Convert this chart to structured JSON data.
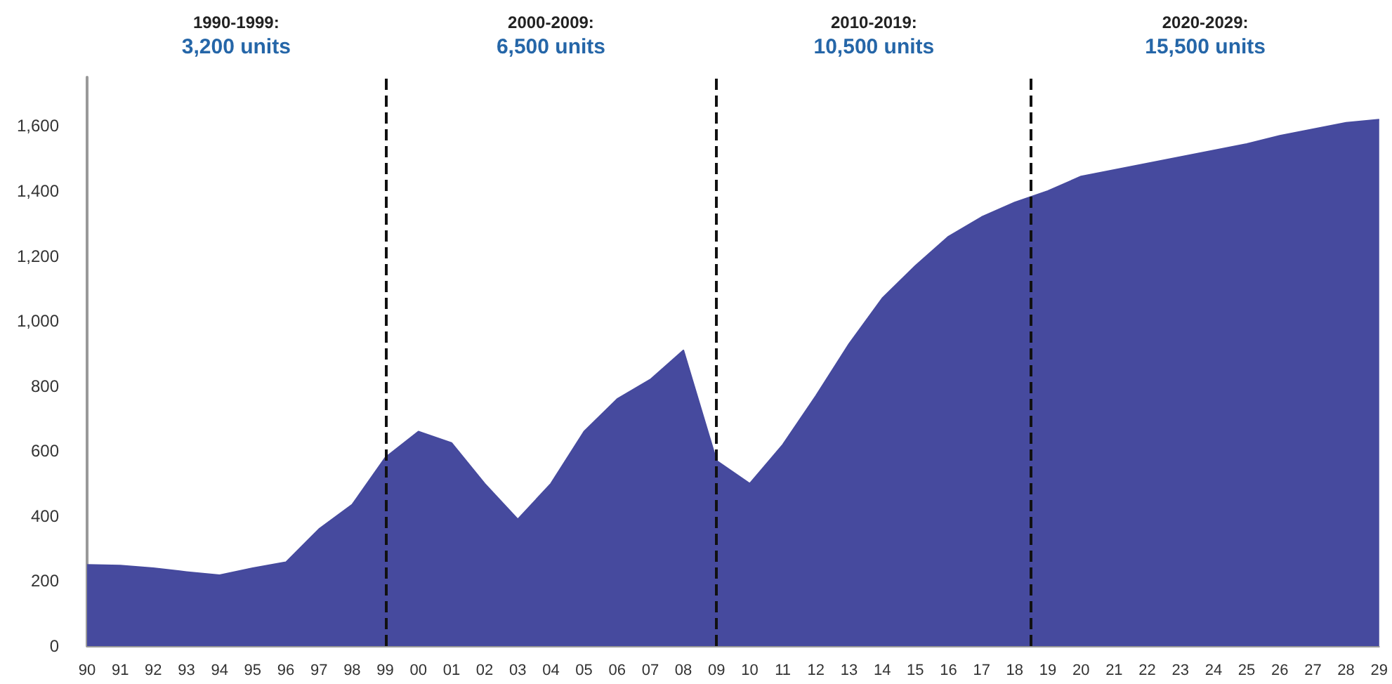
{
  "chart_data": {
    "type": "area",
    "x": [
      1990,
      1991,
      1992,
      1993,
      1994,
      1995,
      1996,
      1997,
      1998,
      1999,
      2000,
      2001,
      2002,
      2003,
      2004,
      2005,
      2006,
      2007,
      2008,
      2009,
      2010,
      2011,
      2012,
      2013,
      2014,
      2015,
      2016,
      2017,
      2018,
      2019,
      2020,
      2021,
      2022,
      2023,
      2024,
      2025,
      2026,
      2027,
      2028,
      2029
    ],
    "series": [
      {
        "color": "#464a9e",
        "values": [
          250,
          248,
          240,
          228,
          218,
          240,
          258,
          360,
          435,
          580,
          660,
          625,
          500,
          390,
          500,
          660,
          760,
          820,
          910,
          570,
          500,
          620,
          770,
          930,
          1070,
          1170,
          1260,
          1320,
          1365,
          1400,
          1445,
          1465,
          1485,
          1505,
          1525,
          1545,
          1570,
          1590,
          1610,
          1620
        ]
      }
    ],
    "xlim": [
      1990,
      2029
    ],
    "xticks": [
      {
        "value": 1990,
        "label": "90"
      },
      {
        "value": 1991,
        "label": "91"
      },
      {
        "value": 1992,
        "label": "92"
      },
      {
        "value": 1993,
        "label": "93"
      },
      {
        "value": 1994,
        "label": "94"
      },
      {
        "value": 1995,
        "label": "95"
      },
      {
        "value": 1996,
        "label": "96"
      },
      {
        "value": 1997,
        "label": "97"
      },
      {
        "value": 1998,
        "label": "98"
      },
      {
        "value": 1999,
        "label": "99"
      },
      {
        "value": 2000,
        "label": "00"
      },
      {
        "value": 2001,
        "label": "01"
      },
      {
        "value": 2002,
        "label": "02"
      },
      {
        "value": 2003,
        "label": "03"
      },
      {
        "value": 2004,
        "label": "04"
      },
      {
        "value": 2005,
        "label": "05"
      },
      {
        "value": 2006,
        "label": "06"
      },
      {
        "value": 2007,
        "label": "07"
      },
      {
        "value": 2008,
        "label": "08"
      },
      {
        "value": 2009,
        "label": "09"
      },
      {
        "value": 2010,
        "label": "10"
      },
      {
        "value": 2011,
        "label": "11"
      },
      {
        "value": 2012,
        "label": "12"
      },
      {
        "value": 2013,
        "label": "13"
      },
      {
        "value": 2014,
        "label": "14"
      },
      {
        "value": 2015,
        "label": "15"
      },
      {
        "value": 2016,
        "label": "16"
      },
      {
        "value": 2017,
        "label": "17"
      },
      {
        "value": 2018,
        "label": "18"
      },
      {
        "value": 2019,
        "label": "19"
      },
      {
        "value": 2020,
        "label": "20"
      },
      {
        "value": 2021,
        "label": "21"
      },
      {
        "value": 2022,
        "label": "22"
      },
      {
        "value": 2023,
        "label": "23"
      },
      {
        "value": 2024,
        "label": "24"
      },
      {
        "value": 2025,
        "label": "25"
      },
      {
        "value": 2026,
        "label": "26"
      },
      {
        "value": 2027,
        "label": "27"
      },
      {
        "value": 2028,
        "label": "28"
      },
      {
        "value": 2029,
        "label": "29"
      }
    ],
    "ylim": [
      0,
      1750
    ],
    "yticks": [
      0,
      {
        "value": 200,
        "label": "200"
      },
      {
        "value": 400,
        "label": "400"
      },
      {
        "value": 600,
        "label": "600"
      },
      {
        "value": 800,
        "label": "800"
      },
      {
        "value": 1000,
        "label": "1,000"
      },
      {
        "value": 1200,
        "label": "1,200"
      },
      {
        "value": 1400,
        "label": "1,400"
      },
      {
        "value": 1600,
        "label": "1,600"
      }
    ],
    "ref_lines": [
      {
        "axis": "x",
        "value": 1999,
        "color": "#111111",
        "line_style": "dashed"
      },
      {
        "axis": "x",
        "value": 2009,
        "color": "#111111",
        "line_style": "dashed"
      },
      {
        "axis": "x",
        "value": 2018.5,
        "color": "#111111",
        "line_style": "dashed"
      }
    ],
    "annotations": [
      "1990-1999:",
      "3,200 units",
      "2000-2009:",
      "6,500 units",
      "2010-2019:",
      "10,500 units",
      "2020-2029:",
      "15,500 units"
    ],
    "grid": false,
    "marker": "none"
  }
}
